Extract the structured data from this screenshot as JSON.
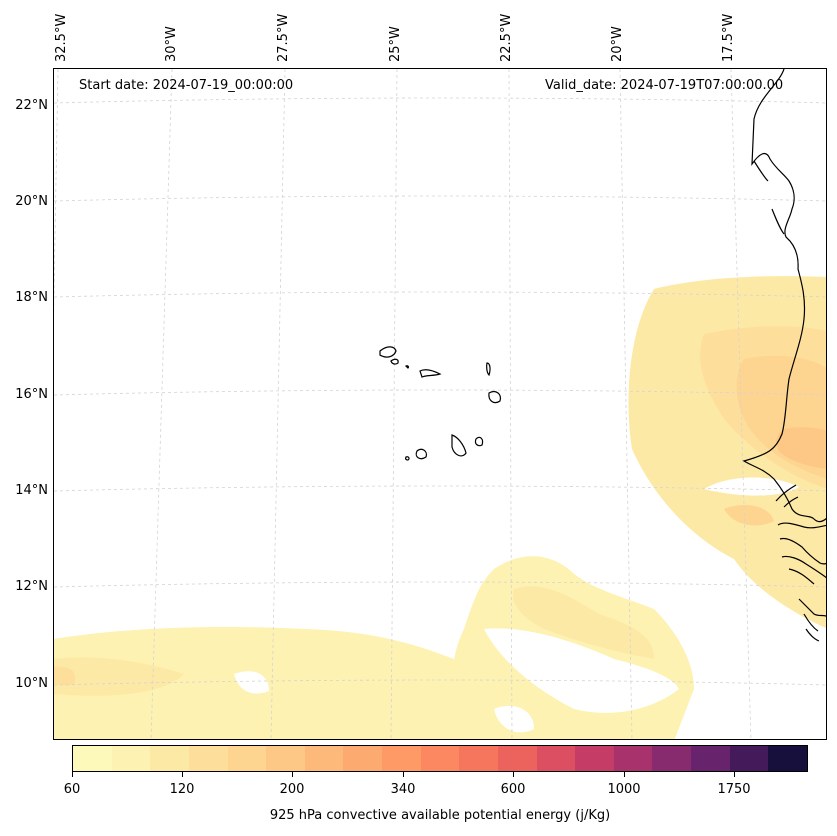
{
  "map": {
    "start_date": "Start date: 2024-07-19_00:00:00",
    "valid_date": "Valid_date: 2024-07-19T07:00:00.00",
    "lon_labels": [
      "32.5°W",
      "30°W",
      "27.5°W",
      "25°W",
      "22.5°W",
      "20°W",
      "17.5°W"
    ],
    "lat_labels": [
      "22°N",
      "20°N",
      "18°N",
      "16°N",
      "14°N",
      "12°N",
      "10°N"
    ],
    "field": "925 hPa convective available potential energy",
    "colormap": "magma_r"
  },
  "colorbar": {
    "label": "925 hPa convective available potential energy (j/Kg)",
    "tick_labels": [
      "60",
      "120",
      "200",
      "340",
      "600",
      "1000",
      "1750"
    ],
    "colors": [
      "#fdf9bb",
      "#fdf2b1",
      "#fde9a6",
      "#fddf9b",
      "#fdd490",
      "#fdc785",
      "#fdb97a",
      "#fdaa70",
      "#fd9a66",
      "#fb8860",
      "#f6765d",
      "#ec625d",
      "#dc4e61",
      "#c53d66",
      "#a8326c",
      "#882a6e",
      "#67236c",
      "#451a5b",
      "#170f3c"
    ]
  }
}
